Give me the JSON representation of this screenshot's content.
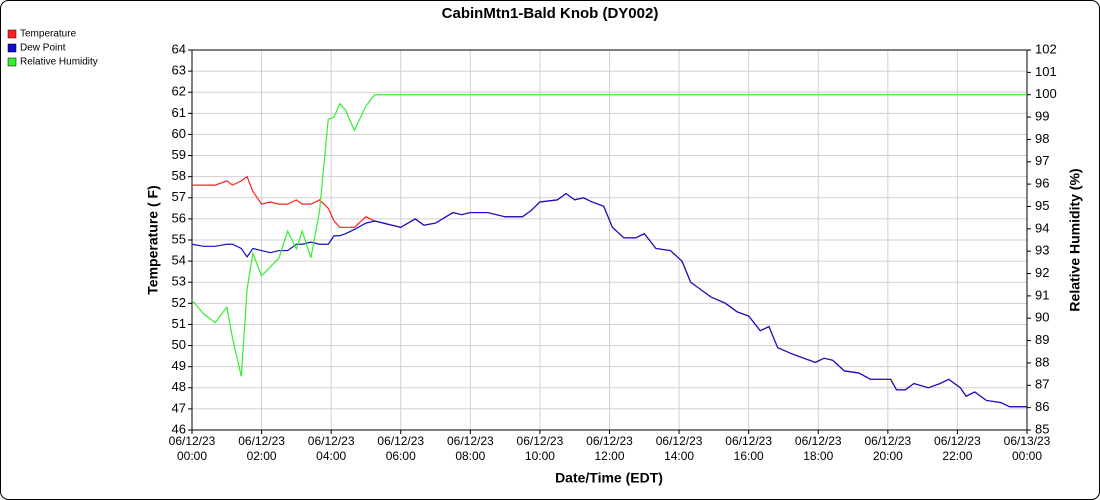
{
  "chart_data": {
    "type": "line",
    "title": "CabinMtn1-Bald Knob (DY002)",
    "x_label": "Date/Time (EDT)",
    "y_label": "Temperature ( F)",
    "y2_label": "Relative Humidity (%)",
    "xlim": [
      "06/12/23 00:00",
      "06/13/23 00:00"
    ],
    "xticks": [
      "06/12/23 00:00",
      "06/12/23 02:00",
      "06/12/23 04:00",
      "06/12/23 06:00",
      "06/12/23 08:00",
      "06/12/23 10:00",
      "06/12/23 12:00",
      "06/12/23 14:00",
      "06/12/23 16:00",
      "06/12/23 18:00",
      "06/12/23 20:00",
      "06/12/23 22:00",
      "06/13/23 00:00"
    ],
    "ylim": [
      46,
      64
    ],
    "yticks": [
      46,
      47,
      48,
      49,
      50,
      51,
      52,
      53,
      54,
      55,
      56,
      57,
      58,
      59,
      60,
      61,
      62,
      63,
      64
    ],
    "y2lim": [
      85,
      102
    ],
    "y2ticks": [
      85,
      86,
      87,
      88,
      89,
      90,
      91,
      92,
      93,
      94,
      95,
      96,
      97,
      98,
      99,
      100,
      101,
      102
    ],
    "grid": true,
    "legend": "top-left",
    "x": [
      "06/12/23 00:00",
      "06/12/23 00:20",
      "06/12/23 00:40",
      "06/12/23 01:00",
      "06/12/23 01:10",
      "06/12/23 01:25",
      "06/12/23 01:35",
      "06/12/23 01:45",
      "06/12/23 02:00",
      "06/12/23 02:15",
      "06/12/23 02:30",
      "06/12/23 02:45",
      "06/12/23 03:00",
      "06/12/23 03:10",
      "06/12/23 03:25",
      "06/12/23 03:40",
      "06/12/23 03:55",
      "06/12/23 04:05",
      "06/12/23 04:15",
      "06/12/23 04:25",
      "06/12/23 04:40",
      "06/12/23 05:00",
      "06/12/23 05:15",
      "06/12/23 05:30",
      "06/12/23 06:00",
      "06/12/23 06:25",
      "06/12/23 06:40",
      "06/12/23 07:00",
      "06/12/23 07:30",
      "06/12/23 07:45",
      "06/12/23 08:00",
      "06/12/23 08:30",
      "06/12/23 09:00",
      "06/12/23 09:30",
      "06/12/23 09:45",
      "06/12/23 10:00",
      "06/12/23 10:30",
      "06/12/23 10:45",
      "06/12/23 11:00",
      "06/12/23 11:15",
      "06/12/23 11:30",
      "06/12/23 11:50",
      "06/12/23 12:05",
      "06/12/23 12:25",
      "06/12/23 12:45",
      "06/12/23 13:00",
      "06/12/23 13:20",
      "06/12/23 13:45",
      "06/12/23 14:05",
      "06/12/23 14:20",
      "06/12/23 14:35",
      "06/12/23 14:55",
      "06/12/23 15:20",
      "06/12/23 15:40",
      "06/12/23 16:00",
      "06/12/23 16:20",
      "06/12/23 16:35",
      "06/12/23 16:50",
      "06/12/23 17:15",
      "06/12/23 17:35",
      "06/12/23 17:55",
      "06/12/23 18:10",
      "06/12/23 18:25",
      "06/12/23 18:45",
      "06/12/23 19:10",
      "06/12/23 19:30",
      "06/12/23 20:05",
      "06/12/23 20:15",
      "06/12/23 20:30",
      "06/12/23 20:45",
      "06/12/23 21:10",
      "06/12/23 21:30",
      "06/12/23 21:45",
      "06/12/23 22:05",
      "06/12/23 22:15",
      "06/12/23 22:30",
      "06/12/23 22:50",
      "06/12/23 23:15",
      "06/12/23 23:30",
      "06/13/23 00:00"
    ],
    "series": [
      {
        "name": "Temperature",
        "color": "#ff2020",
        "values": [
          57.6,
          57.6,
          57.6,
          57.8,
          57.6,
          57.8,
          58.0,
          57.3,
          56.7,
          56.8,
          56.7,
          56.7,
          56.9,
          56.7,
          56.7,
          56.9,
          56.5,
          55.9,
          55.6,
          55.6,
          55.6,
          56.1,
          55.9,
          55.8,
          55.6,
          56.0,
          55.7,
          55.8,
          56.3,
          56.2,
          56.3,
          56.3,
          56.1,
          56.1,
          56.4,
          56.8,
          56.9,
          57.2,
          56.9,
          57.0,
          56.8,
          56.6,
          55.6,
          55.1,
          55.1,
          55.3,
          54.6,
          54.5,
          54.0,
          53.0,
          52.7,
          52.3,
          52.0,
          51.6,
          51.4,
          50.7,
          50.9,
          49.9,
          49.6,
          49.4,
          49.2,
          49.4,
          49.3,
          48.8,
          48.7,
          48.4,
          48.4,
          47.9,
          47.9,
          48.2,
          48.0,
          48.2,
          48.4,
          48.0,
          47.6,
          47.8,
          47.4,
          47.3,
          47.1,
          47.1
        ]
      },
      {
        "name": "Dew Point",
        "color": "#1010cc",
        "values": [
          54.8,
          54.7,
          54.7,
          54.8,
          54.8,
          54.6,
          54.2,
          54.6,
          54.5,
          54.4,
          54.5,
          54.5,
          54.8,
          54.8,
          54.9,
          54.8,
          54.8,
          55.2,
          55.2,
          55.3,
          55.5,
          55.8,
          55.9,
          55.8,
          55.6,
          56.0,
          55.7,
          55.8,
          56.3,
          56.2,
          56.3,
          56.3,
          56.1,
          56.1,
          56.4,
          56.8,
          56.9,
          57.2,
          56.9,
          57.0,
          56.8,
          56.6,
          55.6,
          55.1,
          55.1,
          55.3,
          54.6,
          54.5,
          54.0,
          53.0,
          52.7,
          52.3,
          52.0,
          51.6,
          51.4,
          50.7,
          50.9,
          49.9,
          49.6,
          49.4,
          49.2,
          49.4,
          49.3,
          48.8,
          48.7,
          48.4,
          48.4,
          47.9,
          47.9,
          48.2,
          48.0,
          48.2,
          48.4,
          48.0,
          47.6,
          47.8,
          47.4,
          47.3,
          47.1,
          47.1
        ]
      },
      {
        "name": "Relative Humidity",
        "color": "#33ee33",
        "axis": "y2",
        "values": [
          90.8,
          90.2,
          89.8,
          90.5,
          89.1,
          87.4,
          91.3,
          92.9,
          91.9,
          92.3,
          92.7,
          93.9,
          93.1,
          93.9,
          92.7,
          94.8,
          98.9,
          99.0,
          99.6,
          99.3,
          98.4,
          99.5,
          100,
          100,
          100,
          100,
          100,
          100,
          100,
          100,
          100,
          100,
          100,
          100,
          100,
          100,
          100,
          100,
          100,
          100,
          100,
          100,
          100,
          100,
          100,
          100,
          100,
          100,
          100,
          100,
          100,
          100,
          100,
          100,
          100,
          100,
          100,
          100,
          100,
          100,
          100,
          100,
          100,
          100,
          100,
          100,
          100,
          100,
          100,
          100,
          100,
          100,
          100,
          100,
          100,
          100,
          100,
          100,
          100,
          100
        ]
      }
    ]
  }
}
